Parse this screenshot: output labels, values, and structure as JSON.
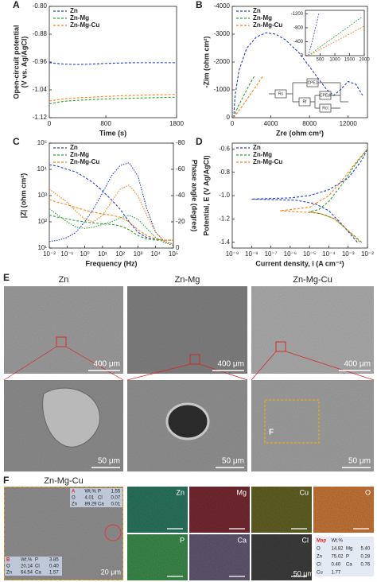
{
  "chart_data": [
    {
      "type": "line",
      "label": "A",
      "xlabel": "Time (s)",
      "ylabel": [
        "Open-circuit potential",
        "(V vs. Ag/AgCl)"
      ],
      "x": [
        0,
        200,
        400,
        600,
        800,
        1000,
        1200,
        1400,
        1600,
        1800
      ],
      "xlim": [
        0,
        1800
      ],
      "xticks": [
        0,
        800,
        1800
      ],
      "ylim": [
        -1.12,
        -0.8
      ],
      "yticks": [
        {
          "value": -0.8,
          "label": "-0.80"
        },
        -0.88,
        -0.96,
        -1.04,
        -1.12
      ],
      "legend": "top-left",
      "series": [
        {
          "name": "Zn",
          "color": "#1f3fd0",
          "values": [
            -0.962,
            -0.966,
            -0.967,
            -0.966,
            -0.964,
            -0.963,
            -0.962,
            -0.962,
            -0.962,
            -0.962
          ]
        },
        {
          "name": "Zn-Mg",
          "color": "#2ca02c",
          "values": [
            -1.08,
            -1.073,
            -1.07,
            -1.068,
            -1.066,
            -1.065,
            -1.064,
            -1.063,
            -1.062,
            -1.061
          ]
        },
        {
          "name": "Zn-Mg-Cu",
          "color": "#ff7f0e",
          "values": [
            -1.072,
            -1.066,
            -1.063,
            -1.061,
            -1.059,
            -1.057,
            -1.056,
            -1.055,
            -1.054,
            -1.053
          ]
        }
      ]
    },
    {
      "type": "line",
      "label": "B",
      "xlabel": "Zre (ohm cm²)",
      "ylabel": [
        "-Zim (ohm cm²)"
      ],
      "xlim": [
        0,
        14000
      ],
      "xticks": [
        0,
        4000,
        8000,
        12000
      ],
      "ylim": [
        0,
        -4000
      ],
      "yticks": [
        0,
        -1000,
        -2000,
        -3000,
        -4000
      ],
      "legend": "top-left",
      "circuit": [
        "Rs",
        "CPE1",
        "Rf",
        "CPEdl",
        "Rct"
      ],
      "series": [
        {
          "name": "Zn",
          "color": "#1f3fd0",
          "x": [
            150,
            300,
            700,
            1500,
            2500,
            3500,
            4500,
            5500,
            7000,
            8500,
            9800,
            10500,
            11200,
            12000,
            12800,
            13500
          ],
          "values": [
            0,
            -800,
            -1700,
            -2500,
            -2900,
            -3050,
            -3000,
            -2800,
            -2300,
            -1600,
            -1000,
            -800,
            -1000,
            -1300,
            -1200,
            -800
          ]
        },
        {
          "name": "Zn-Mg",
          "color": "#2ca02c",
          "x": [
            150,
            600,
            1200,
            1800,
            2300
          ],
          "values": [
            0,
            -400,
            -800,
            -1200,
            -1500
          ]
        },
        {
          "name": "Zn-Mg-Cu",
          "color": "#ff7f0e",
          "x": [
            150,
            1000,
            2000,
            3200
          ],
          "values": [
            0,
            -400,
            -900,
            -1500
          ]
        }
      ]
    },
    {
      "type": "line",
      "xlim": [
        0,
        2000
      ],
      "xticks": [
        500,
        1000,
        1500,
        2000
      ],
      "ylim": [
        0,
        -1300
      ],
      "yticks": [
        0,
        -400,
        -800,
        -1200
      ],
      "series": [
        {
          "color": "#1f3fd0",
          "x": [
            100,
            200,
            300,
            400,
            450
          ],
          "values": [
            0,
            -300,
            -650,
            -1000,
            -1200
          ]
        },
        {
          "color": "#2ca02c",
          "x": [
            100,
            500,
            1000,
            1500,
            1900
          ],
          "values": [
            0,
            -250,
            -550,
            -850,
            -1100
          ]
        },
        {
          "color": "#ff7f0e",
          "x": [
            100,
            500,
            1000,
            1500,
            2000
          ],
          "values": [
            0,
            -180,
            -400,
            -620,
            -850
          ]
        }
      ]
    },
    {
      "type": "bode",
      "label": "C",
      "xlabel": "Frequency (Hz)",
      "ylabel": [
        "|Z| (ohm cm²)"
      ],
      "y2label": "Phase angle (degree)",
      "xlog": true,
      "ylog": true,
      "x": [
        0.01,
        0.0316,
        0.1,
        0.316,
        1,
        3.16,
        10,
        31.6,
        100,
        316,
        1000,
        3160,
        10000,
        31600,
        100000
      ],
      "xlim": [
        0.01,
        100000
      ],
      "xticks": [
        {
          "value": 0.01,
          "label": "10⁻²"
        },
        {
          "value": 0.1,
          "label": "10⁻¹"
        },
        {
          "value": 1,
          "label": "10⁰"
        },
        {
          "value": 10,
          "label": "10¹"
        },
        {
          "value": 100,
          "label": "10²"
        },
        {
          "value": 1000,
          "label": "10³"
        },
        {
          "value": 10000,
          "label": "10⁴"
        },
        {
          "value": 100000,
          "label": "10⁵"
        }
      ],
      "ylim": [
        10,
        100000
      ],
      "yticks": [
        {
          "value": 10,
          "label": "10¹"
        },
        {
          "value": 100,
          "label": "10²"
        },
        {
          "value": 1000,
          "label": "10³"
        },
        {
          "value": 10000,
          "label": "10⁴"
        },
        {
          "value": 100000,
          "label": "10⁵"
        }
      ],
      "y2lim": [
        0,
        -80
      ],
      "y2ticks": [
        0,
        -20,
        -40,
        -60,
        -80
      ],
      "legend": "top-left",
      "series": [
        {
          "name": "Zn",
          "color": "#1f3fd0",
          "values": [
            15000,
            13000,
            10000,
            8000,
            5000,
            3000,
            1500,
            700,
            300,
            100,
            40,
            25,
            22,
            20,
            20
          ],
          "phase": [
            -5,
            -6,
            -8,
            -12,
            -20,
            -30,
            -42,
            -55,
            -63,
            -65,
            -55,
            -30,
            -12,
            -5,
            -3
          ]
        },
        {
          "name": "Zn-Mg",
          "color": "#2ca02c",
          "values": [
            180,
            150,
            130,
            110,
            100,
            90,
            85,
            80,
            70,
            50,
            30,
            22,
            20,
            20,
            20
          ],
          "phase": [
            -30,
            -25,
            -20,
            -16,
            -15,
            -16,
            -18,
            -20,
            -23,
            -25,
            -22,
            -15,
            -8,
            -4,
            -2
          ]
        },
        {
          "name": "Zn-Mg-Cu",
          "color": "#ff7f0e",
          "values": [
            700,
            550,
            450,
            350,
            280,
            230,
            200,
            180,
            150,
            100,
            50,
            30,
            22,
            20,
            20
          ],
          "phase": [
            -45,
            -40,
            -35,
            -28,
            -22,
            -20,
            -25,
            -35,
            -45,
            -48,
            -40,
            -25,
            -12,
            -5,
            -3
          ]
        }
      ]
    },
    {
      "type": "line",
      "label": "D",
      "xlabel": "Current density, i (A cm⁻²)",
      "ylabel": [
        "Potential, E (V Ag/AgCl)"
      ],
      "xlog": true,
      "xlim": [
        1e-09,
        0.01
      ],
      "xticks": [
        {
          "value": 1e-09,
          "label": "10⁻⁹"
        },
        {
          "value": 1e-08,
          "label": "10⁻⁸"
        },
        {
          "value": 1e-07,
          "label": "10⁻⁷"
        },
        {
          "value": 1e-06,
          "label": "10⁻⁶"
        },
        {
          "value": 1e-05,
          "label": "10⁻⁵"
        },
        {
          "value": 0.0001,
          "label": "10⁻⁴"
        },
        {
          "value": 0.001,
          "label": "10⁻³"
        },
        {
          "value": 0.01,
          "label": "10⁻²"
        }
      ],
      "ylim": [
        -1.45,
        -0.55
      ],
      "yticks": [
        -1.4,
        -1.2,
        {
          "value": -1,
          "label": "-1.0"
        },
        -0.8,
        -0.6
      ],
      "legend": "top-left",
      "series": [
        {
          "name": "Zn",
          "color": "#1f3fd0",
          "x": [
            0.003,
            0.0005,
            0.0001,
            2e-05,
            2e-06,
            1e-08,
            1e-06,
            1e-05,
            0.0001,
            0.001,
            0.005,
            0.01
          ],
          "values": [
            -1.4,
            -1.25,
            -1.13,
            -1.07,
            -1.04,
            -1.03,
            -1.02,
            -1,
            -0.95,
            -0.85,
            -0.7,
            -0.6
          ]
        },
        {
          "name": "Zn-Mg",
          "color": "#2ca02c",
          "x": [
            0.005,
            0.001,
            0.0002,
            5e-05,
            1e-05,
            3e-05,
            0.0001,
            0.0005,
            0.002,
            0.01
          ],
          "values": [
            -1.4,
            -1.3,
            -1.2,
            -1.16,
            -1.14,
            -1.12,
            -1.05,
            -0.9,
            -0.75,
            -0.6
          ]
        },
        {
          "name": "Zn-Mg-Cu",
          "color": "#ff7f0e",
          "x": [
            0.004,
            0.001,
            0.0002,
            3e-05,
            3e-07,
            1e-05,
            0.0001,
            0.0006,
            0.003,
            0.01
          ],
          "values": [
            -1.4,
            -1.3,
            -1.2,
            -1.15,
            -1.13,
            -1.1,
            -1,
            -0.85,
            -0.7,
            -0.6
          ]
        }
      ]
    }
  ],
  "micrographs": {
    "label": "E",
    "columns": [
      "Zn",
      "Zn-Mg",
      "Zn-Mg-Cu"
    ],
    "low_scale": "400 μm",
    "high_scale": "50 μm",
    "inset_label": "F"
  },
  "eds": {
    "label": "F",
    "title": "Zn-Mg-Cu",
    "image_scale": "20 μm",
    "map_scale": "50 μm",
    "points": [
      {
        "rows": [
          [
            "A",
            "Wt.%",
            "P",
            "1.55"
          ],
          [
            "O",
            "4.01",
            "Cl",
            "0.07"
          ],
          [
            "Zn",
            "89.29",
            "Ca",
            "0.01"
          ]
        ]
      },
      {
        "rows": [
          [
            "B",
            "Wt.%",
            "P",
            "3.85"
          ],
          [
            "O",
            "20.14",
            "Cl",
            "0.40"
          ],
          [
            "Zn",
            "64.54",
            "Ca",
            "1.57"
          ]
        ]
      }
    ],
    "maps": [
      "Zn",
      "Mg",
      "Cu",
      "O",
      "P",
      "Ca",
      "Cl"
    ],
    "map_table": {
      "rows": [
        [
          "Map",
          "Wt.%"
        ],
        [
          "O",
          "14.82",
          "Mg",
          "5.40"
        ],
        [
          "Zn",
          "75.02",
          "P",
          "0.28"
        ],
        [
          "Cl",
          "0.40",
          "Ca",
          "0.76"
        ],
        [
          "Cu",
          "1.77"
        ]
      ]
    }
  }
}
